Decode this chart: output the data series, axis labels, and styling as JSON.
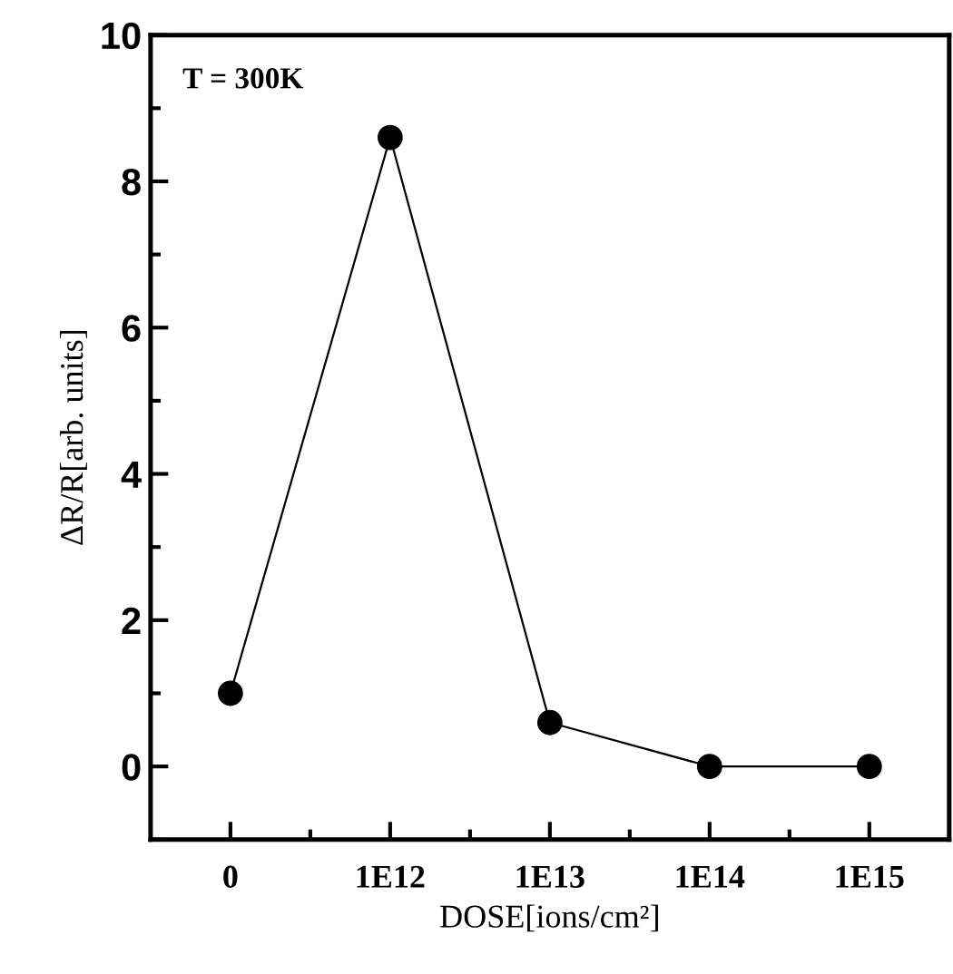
{
  "chart_data": {
    "type": "line",
    "xlabel": "DOSE[ions/cm²]",
    "ylabel": "ΔR/R[arb. units]",
    "annotations": [
      "T = 300K"
    ],
    "categories": [
      "0",
      "1E12",
      "1E13",
      "1E14",
      "1E15"
    ],
    "series": [
      {
        "color": "#000000",
        "values": [
          1.0,
          8.6,
          0.6,
          0.0,
          0.0
        ]
      }
    ],
    "ylim": [
      -1,
      10
    ],
    "yticks": [
      0,
      2,
      4,
      6,
      8,
      10
    ],
    "marker": "circle",
    "line_style": "solid"
  }
}
